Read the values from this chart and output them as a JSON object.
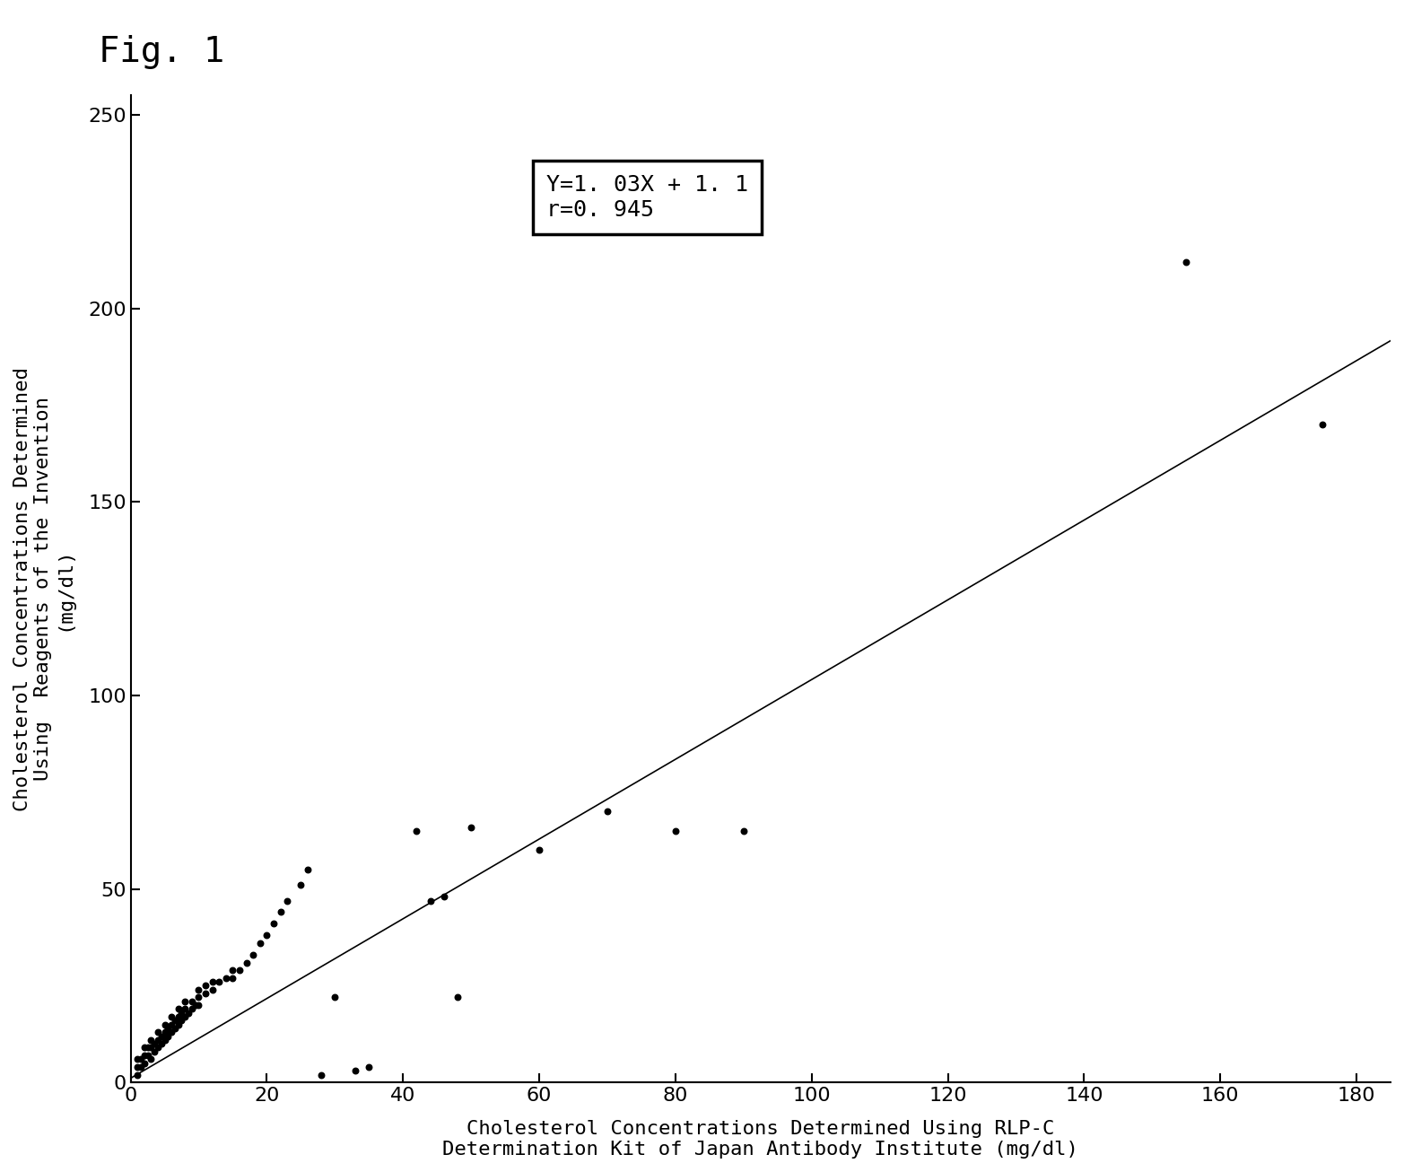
{
  "title": "Fig. 1",
  "xlabel_line1": "Cholesterol Concentrations Determined Using RLP-C",
  "xlabel_line2": "Determination Kit of Japan Antibody Institute (mg/dl)",
  "ylabel_line1": "Cholesterol Concentrations Determined",
  "ylabel_line2": "Using  Reagents of the Invention",
  "ylabel_line3": "(mg/dl)",
  "equation": "Y=1. 03X + 1. 1",
  "r_value": "r=0. 945",
  "xlim": [
    0,
    185
  ],
  "ylim": [
    0,
    255
  ],
  "xticks": [
    0,
    20,
    40,
    60,
    80,
    100,
    120,
    140,
    160,
    180
  ],
  "yticks": [
    0,
    50,
    100,
    150,
    200,
    250
  ],
  "scatter_x": [
    1,
    1,
    1,
    1.5,
    1.5,
    2,
    2,
    2,
    2.5,
    2.5,
    3,
    3,
    3,
    3.5,
    3.5,
    4,
    4,
    4,
    4.5,
    4.5,
    5,
    5,
    5,
    5.5,
    5.5,
    6,
    6,
    6,
    6.5,
    6.5,
    7,
    7,
    7,
    7.5,
    7.5,
    8,
    8,
    8,
    8.5,
    9,
    9,
    9.5,
    10,
    10,
    10,
    11,
    11,
    12,
    12,
    13,
    14,
    15,
    15,
    16,
    17,
    18,
    19,
    20,
    21,
    22,
    23,
    25,
    26,
    28,
    30,
    33,
    35,
    42,
    44,
    46,
    48,
    50,
    60,
    70,
    80,
    90,
    155,
    175
  ],
  "scatter_y": [
    2,
    4,
    6,
    4,
    6,
    5,
    7,
    9,
    7,
    9,
    6,
    9,
    11,
    8,
    10,
    9,
    11,
    13,
    10,
    12,
    11,
    13,
    15,
    12,
    14,
    13,
    15,
    17,
    14,
    16,
    15,
    17,
    19,
    16,
    18,
    17,
    19,
    21,
    18,
    19,
    21,
    20,
    20,
    22,
    24,
    23,
    25,
    24,
    26,
    26,
    27,
    27,
    29,
    29,
    31,
    33,
    36,
    38,
    41,
    44,
    47,
    51,
    55,
    2,
    22,
    3,
    4,
    65,
    47,
    48,
    22,
    66,
    60,
    70,
    65,
    65,
    212,
    170
  ],
  "regression_slope": 1.03,
  "regression_intercept": 1.1,
  "point_color": "#000000",
  "line_color": "#000000",
  "background_color": "#ffffff",
  "title_fontsize": 28,
  "label_fontsize": 16,
  "tick_fontsize": 16,
  "annotation_fontsize": 18
}
